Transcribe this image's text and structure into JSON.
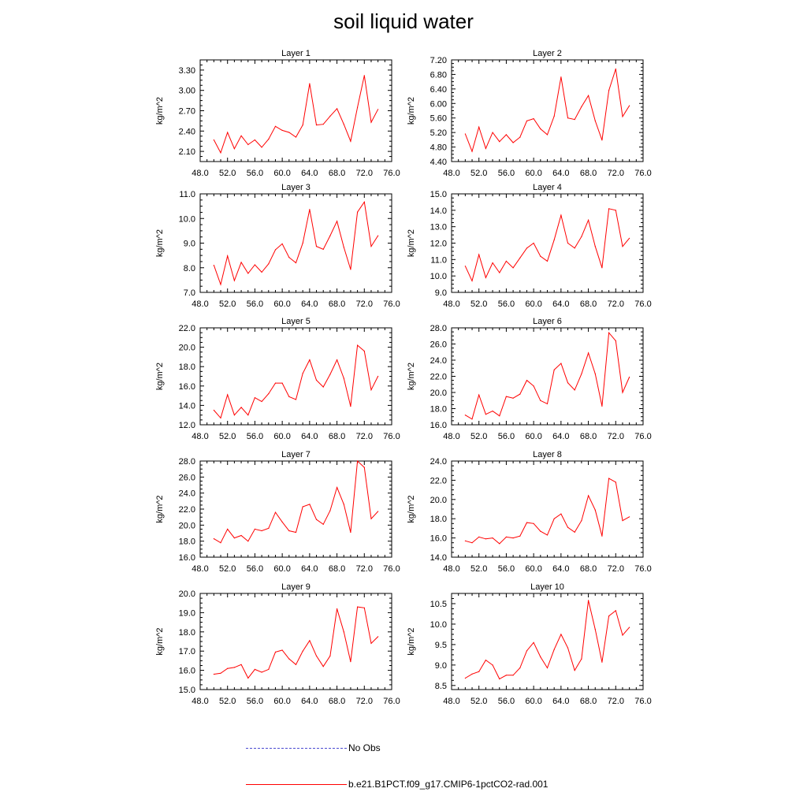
{
  "title": "soil liquid water",
  "legend": {
    "no_obs_label": "No Obs",
    "model_label": "b.e21.B1PCT.f09_g17.CMIP6-1pctCO2-rad.001",
    "no_obs_color": "#4a4ad0",
    "model_color": "#ff0000"
  },
  "chart_data": [
    {
      "type": "line",
      "title": "Layer 1",
      "ylabel": "kg/m^2",
      "xlim": [
        48,
        76
      ],
      "ylim": [
        1.95,
        3.45
      ],
      "xticks": [
        48,
        52,
        56,
        60,
        64,
        68,
        72,
        76
      ],
      "xticklabels": [
        "48.0",
        "52.0",
        "56.0",
        "60.0",
        "64.0",
        "68.0",
        "72.0",
        "76.0"
      ],
      "yticks": [
        2.1,
        2.4,
        2.7,
        3.0,
        3.3
      ],
      "yticklabels": [
        "2.10",
        "2.40",
        "2.70",
        "3.00",
        "3.30"
      ],
      "x": [
        50,
        51,
        52,
        53,
        54,
        55,
        56,
        57,
        58,
        59,
        60,
        61,
        62,
        63,
        64,
        65,
        66,
        67,
        68,
        69,
        70,
        71,
        72,
        73,
        74
      ],
      "series": [
        {
          "name": "b.e21.B1PCT.f09_g17.CMIP6-1pctCO2-rad.001",
          "values": [
            2.27,
            2.08,
            2.38,
            2.14,
            2.33,
            2.2,
            2.27,
            2.16,
            2.28,
            2.47,
            2.41,
            2.38,
            2.31,
            2.49,
            3.1,
            2.49,
            2.5,
            2.62,
            2.73,
            2.5,
            2.25,
            2.75,
            3.22,
            2.53,
            2.72
          ]
        }
      ]
    },
    {
      "type": "line",
      "title": "Layer 2",
      "ylabel": "kg/m^2",
      "xlim": [
        48,
        76
      ],
      "ylim": [
        4.4,
        7.2
      ],
      "xticks": [
        48,
        52,
        56,
        60,
        64,
        68,
        72,
        76
      ],
      "xticklabels": [
        "48.0",
        "52.0",
        "56.0",
        "60.0",
        "64.0",
        "68.0",
        "72.0",
        "76.0"
      ],
      "yticks": [
        4.4,
        4.8,
        5.2,
        5.6,
        6.0,
        6.4,
        6.8,
        7.2
      ],
      "yticklabels": [
        "4.40",
        "4.80",
        "5.20",
        "5.60",
        "6.00",
        "6.40",
        "6.80",
        "7.20"
      ],
      "x": [
        50,
        51,
        52,
        53,
        54,
        55,
        56,
        57,
        58,
        59,
        60,
        61,
        62,
        63,
        64,
        65,
        66,
        67,
        68,
        69,
        70,
        71,
        72,
        73,
        74
      ],
      "series": [
        {
          "name": "b.e21.B1PCT.f09_g17.CMIP6-1pctCO2-rad.001",
          "values": [
            5.16,
            4.68,
            5.35,
            4.76,
            5.2,
            4.95,
            5.14,
            4.92,
            5.07,
            5.52,
            5.58,
            5.3,
            5.14,
            5.65,
            6.73,
            5.6,
            5.56,
            5.91,
            6.22,
            5.52,
            4.99,
            6.36,
            6.95,
            5.64,
            5.94
          ]
        }
      ]
    },
    {
      "type": "line",
      "title": "Layer 3",
      "ylabel": "kg/m^2",
      "xlim": [
        48,
        76
      ],
      "ylim": [
        7.0,
        11.0
      ],
      "xticks": [
        48,
        52,
        56,
        60,
        64,
        68,
        72,
        76
      ],
      "xticklabels": [
        "48.0",
        "52.0",
        "56.0",
        "60.0",
        "64.0",
        "68.0",
        "72.0",
        "76.0"
      ],
      "yticks": [
        7,
        8,
        9,
        10,
        11
      ],
      "yticklabels": [
        "7.0",
        "8.0",
        "9.0",
        "10.0",
        "11.0"
      ],
      "x": [
        50,
        51,
        52,
        53,
        54,
        55,
        56,
        57,
        58,
        59,
        60,
        61,
        62,
        63,
        64,
        65,
        66,
        67,
        68,
        69,
        70,
        71,
        72,
        73,
        74
      ],
      "series": [
        {
          "name": "b.e21.B1PCT.f09_g17.CMIP6-1pctCO2-rad.001",
          "values": [
            8.1,
            7.32,
            8.48,
            7.48,
            8.22,
            7.77,
            8.12,
            7.82,
            8.16,
            8.73,
            8.97,
            8.42,
            8.2,
            9.0,
            10.37,
            8.87,
            8.75,
            9.3,
            9.89,
            8.83,
            7.93,
            10.26,
            10.67,
            8.87,
            9.3
          ]
        }
      ]
    },
    {
      "type": "line",
      "title": "Layer 4",
      "ylabel": "kg/m^2",
      "xlim": [
        48,
        76
      ],
      "ylim": [
        9.0,
        15.0
      ],
      "xticks": [
        48,
        52,
        56,
        60,
        64,
        68,
        72,
        76
      ],
      "xticklabels": [
        "48.0",
        "52.0",
        "56.0",
        "60.0",
        "64.0",
        "68.0",
        "72.0",
        "76.0"
      ],
      "yticks": [
        9,
        10,
        11,
        12,
        13,
        14,
        15
      ],
      "yticklabels": [
        "9.0",
        "10.0",
        "11.0",
        "12.0",
        "13.0",
        "14.0",
        "15.0"
      ],
      "x": [
        50,
        51,
        52,
        53,
        54,
        55,
        56,
        57,
        58,
        59,
        60,
        61,
        62,
        63,
        64,
        65,
        66,
        67,
        68,
        69,
        70,
        71,
        72,
        73,
        74
      ],
      "series": [
        {
          "name": "b.e21.B1PCT.f09_g17.CMIP6-1pctCO2-rad.001",
          "values": [
            10.6,
            9.7,
            11.3,
            9.9,
            10.8,
            10.2,
            10.9,
            10.5,
            11.1,
            11.7,
            12.0,
            11.2,
            10.9,
            12.2,
            13.7,
            12.0,
            11.7,
            12.4,
            13.4,
            11.8,
            10.5,
            14.1,
            14.0,
            11.8,
            12.3
          ]
        }
      ]
    },
    {
      "type": "line",
      "title": "Layer 5",
      "ylabel": "kg/m^2",
      "xlim": [
        48,
        76
      ],
      "ylim": [
        12.0,
        22.0
      ],
      "xticks": [
        48,
        52,
        56,
        60,
        64,
        68,
        72,
        76
      ],
      "xticklabels": [
        "48.0",
        "52.0",
        "56.0",
        "60.0",
        "64.0",
        "68.0",
        "72.0",
        "76.0"
      ],
      "yticks": [
        12,
        14,
        16,
        18,
        20,
        22
      ],
      "yticklabels": [
        "12.0",
        "14.0",
        "16.0",
        "18.0",
        "20.0",
        "22.0"
      ],
      "x": [
        50,
        51,
        52,
        53,
        54,
        55,
        56,
        57,
        58,
        59,
        60,
        61,
        62,
        63,
        64,
        65,
        66,
        67,
        68,
        69,
        70,
        71,
        72,
        73,
        74
      ],
      "series": [
        {
          "name": "b.e21.B1PCT.f09_g17.CMIP6-1pctCO2-rad.001",
          "values": [
            13.5,
            12.7,
            15.1,
            13.0,
            13.8,
            13.0,
            14.8,
            14.4,
            15.2,
            16.3,
            16.3,
            14.9,
            14.6,
            17.3,
            18.7,
            16.6,
            15.9,
            17.2,
            18.7,
            16.8,
            13.9,
            20.2,
            19.6,
            15.6,
            17.0
          ]
        }
      ]
    },
    {
      "type": "line",
      "title": "Layer 6",
      "ylabel": "kg/m^2",
      "xlim": [
        48,
        76
      ],
      "ylim": [
        16.0,
        28.0
      ],
      "xticks": [
        48,
        52,
        56,
        60,
        64,
        68,
        72,
        76
      ],
      "xticklabels": [
        "48.0",
        "52.0",
        "56.0",
        "60.0",
        "64.0",
        "68.0",
        "72.0",
        "76.0"
      ],
      "yticks": [
        16,
        18,
        20,
        22,
        24,
        26,
        28
      ],
      "yticklabels": [
        "16.0",
        "18.0",
        "20.0",
        "22.0",
        "24.0",
        "26.0",
        "28.0"
      ],
      "x": [
        50,
        51,
        52,
        53,
        54,
        55,
        56,
        57,
        58,
        59,
        60,
        61,
        62,
        63,
        64,
        65,
        66,
        67,
        68,
        69,
        70,
        71,
        72,
        73,
        74
      ],
      "series": [
        {
          "name": "b.e21.B1PCT.f09_g17.CMIP6-1pctCO2-rad.001",
          "values": [
            17.2,
            16.7,
            19.7,
            17.3,
            17.7,
            17.1,
            19.5,
            19.3,
            19.8,
            21.5,
            20.8,
            19.0,
            18.6,
            22.8,
            23.6,
            21.2,
            20.3,
            22.3,
            24.9,
            22.3,
            18.3,
            27.4,
            26.4,
            20.0,
            21.9
          ]
        }
      ]
    },
    {
      "type": "line",
      "title": "Layer 7",
      "ylabel": "kg/m^2",
      "xlim": [
        48,
        76
      ],
      "ylim": [
        16.0,
        28.0
      ],
      "xticks": [
        48,
        52,
        56,
        60,
        64,
        68,
        72,
        76
      ],
      "xticklabels": [
        "48.0",
        "52.0",
        "56.0",
        "60.0",
        "64.0",
        "68.0",
        "72.0",
        "76.0"
      ],
      "yticks": [
        16,
        18,
        20,
        22,
        24,
        26,
        28
      ],
      "yticklabels": [
        "16.0",
        "18.0",
        "20.0",
        "22.0",
        "24.0",
        "26.0",
        "28.0"
      ],
      "x": [
        50,
        51,
        52,
        53,
        54,
        55,
        56,
        57,
        58,
        59,
        60,
        61,
        62,
        63,
        64,
        65,
        66,
        67,
        68,
        69,
        70,
        71,
        72,
        73,
        74
      ],
      "series": [
        {
          "name": "b.e21.B1PCT.f09_g17.CMIP6-1pctCO2-rad.001",
          "values": [
            18.3,
            17.8,
            19.5,
            18.4,
            18.7,
            18.0,
            19.5,
            19.3,
            19.6,
            21.6,
            20.4,
            19.3,
            19.1,
            22.3,
            22.6,
            20.7,
            20.1,
            21.8,
            24.7,
            22.6,
            19.1,
            28.0,
            27.2,
            20.8,
            21.7
          ]
        }
      ]
    },
    {
      "type": "line",
      "title": "Layer 8",
      "ylabel": "kg/m^2",
      "xlim": [
        48,
        76
      ],
      "ylim": [
        14.0,
        24.0
      ],
      "xticks": [
        48,
        52,
        56,
        60,
        64,
        68,
        72,
        76
      ],
      "xticklabels": [
        "48.0",
        "52.0",
        "56.0",
        "60.0",
        "64.0",
        "68.0",
        "72.0",
        "76.0"
      ],
      "yticks": [
        14,
        16,
        18,
        20,
        22,
        24
      ],
      "yticklabels": [
        "14.0",
        "16.0",
        "18.0",
        "20.0",
        "22.0",
        "24.0"
      ],
      "x": [
        50,
        51,
        52,
        53,
        54,
        55,
        56,
        57,
        58,
        59,
        60,
        61,
        62,
        63,
        64,
        65,
        66,
        67,
        68,
        69,
        70,
        71,
        72,
        73,
        74
      ],
      "series": [
        {
          "name": "b.e21.B1PCT.f09_g17.CMIP6-1pctCO2-rad.001",
          "values": [
            15.7,
            15.5,
            16.1,
            15.9,
            16.0,
            15.4,
            16.1,
            16.0,
            16.2,
            17.6,
            17.5,
            16.7,
            16.3,
            18.0,
            18.5,
            17.1,
            16.6,
            17.8,
            20.4,
            18.9,
            16.2,
            22.2,
            21.8,
            17.8,
            18.2
          ]
        }
      ]
    },
    {
      "type": "line",
      "title": "Layer 9",
      "ylabel": "kg/m^2",
      "xlim": [
        48,
        76
      ],
      "ylim": [
        15.0,
        20.0
      ],
      "xticks": [
        48,
        52,
        56,
        60,
        64,
        68,
        72,
        76
      ],
      "xticklabels": [
        "48.0",
        "52.0",
        "56.0",
        "60.0",
        "64.0",
        "68.0",
        "72.0",
        "76.0"
      ],
      "yticks": [
        15,
        16,
        17,
        18,
        19,
        20
      ],
      "yticklabels": [
        "15.0",
        "16.0",
        "17.0",
        "18.0",
        "19.0",
        "20.0"
      ],
      "x": [
        50,
        51,
        52,
        53,
        54,
        55,
        56,
        57,
        58,
        59,
        60,
        61,
        62,
        63,
        64,
        65,
        66,
        67,
        68,
        69,
        70,
        71,
        72,
        73,
        74
      ],
      "series": [
        {
          "name": "b.e21.B1PCT.f09_g17.CMIP6-1pctCO2-rad.001",
          "values": [
            15.8,
            15.85,
            16.1,
            16.15,
            16.3,
            15.6,
            16.05,
            15.9,
            16.05,
            16.95,
            17.05,
            16.6,
            16.3,
            17.0,
            17.55,
            16.75,
            16.2,
            16.75,
            19.2,
            18.0,
            16.45,
            19.3,
            19.25,
            17.4,
            17.75
          ]
        }
      ]
    },
    {
      "type": "line",
      "title": "Layer 10",
      "ylabel": "kg/m^2",
      "xlim": [
        48,
        76
      ],
      "ylim": [
        8.4,
        10.75
      ],
      "xticks": [
        48,
        52,
        56,
        60,
        64,
        68,
        72,
        76
      ],
      "xticklabels": [
        "48.0",
        "52.0",
        "56.0",
        "60.0",
        "64.0",
        "68.0",
        "72.0",
        "76.0"
      ],
      "yticks": [
        8.5,
        9.0,
        9.5,
        10.0,
        10.5
      ],
      "yticklabels": [
        "8.5",
        "9.0",
        "9.5",
        "10.0",
        "10.5"
      ],
      "x": [
        50,
        51,
        52,
        53,
        54,
        55,
        56,
        57,
        58,
        59,
        60,
        61,
        62,
        63,
        64,
        65,
        66,
        67,
        68,
        69,
        70,
        71,
        72,
        73,
        74
      ],
      "series": [
        {
          "name": "b.e21.B1PCT.f09_g17.CMIP6-1pctCO2-rad.001",
          "values": [
            8.68,
            8.78,
            8.84,
            9.12,
            9.0,
            8.66,
            8.75,
            8.75,
            8.93,
            9.35,
            9.55,
            9.2,
            8.93,
            9.38,
            9.75,
            9.42,
            8.87,
            9.15,
            10.58,
            9.87,
            9.07,
            10.2,
            10.33,
            9.73,
            9.92
          ]
        }
      ]
    }
  ]
}
